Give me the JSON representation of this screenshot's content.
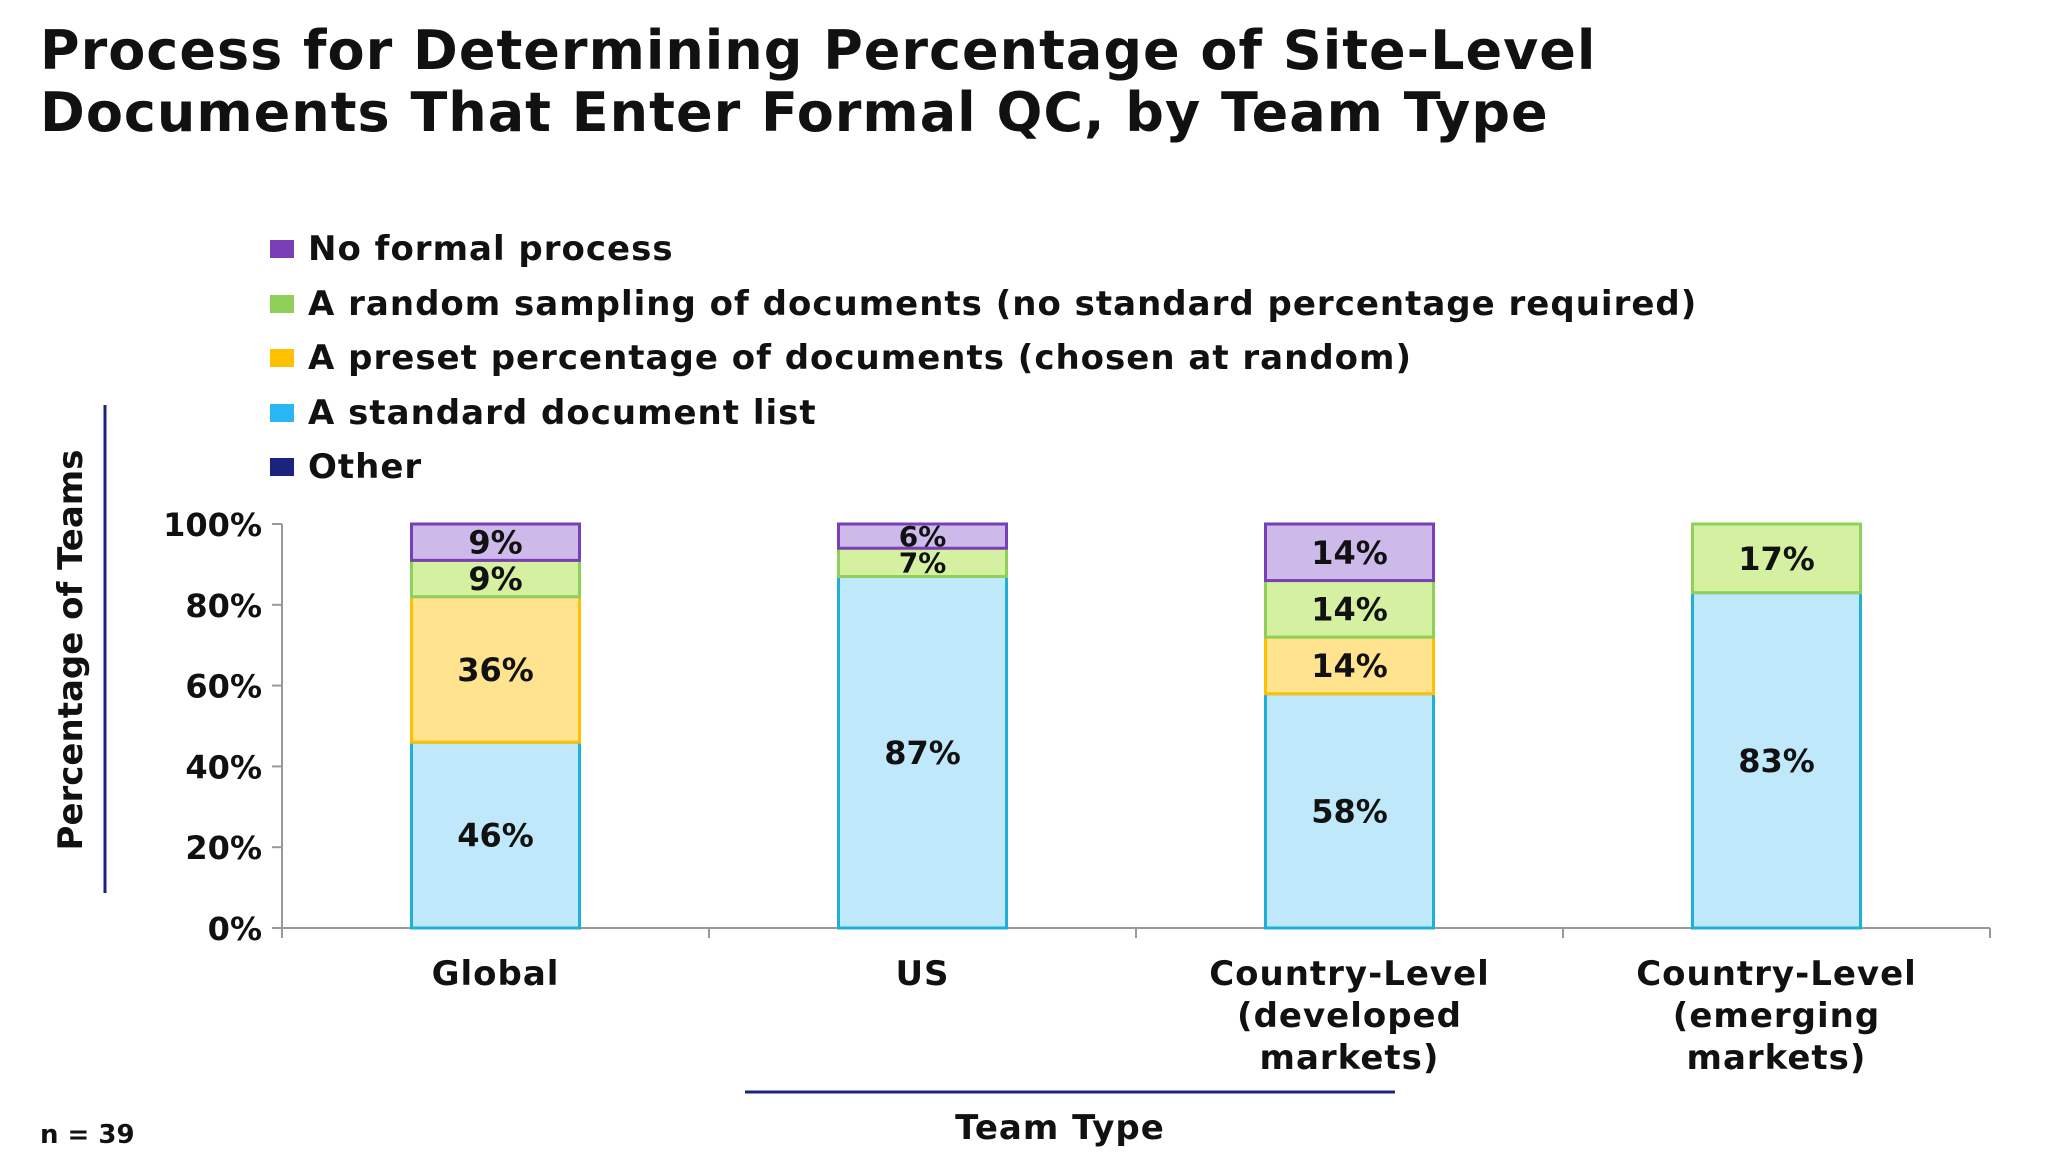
{
  "title_line1": "Process for Determining Percentage of Site-Level",
  "title_line2": "Documents That Enter Formal QC, by Team Type",
  "n_label": "n = 39",
  "chart_data": {
    "type": "bar",
    "stacked": true,
    "title": "Process for Determining Percentage of Site-Level Documents That Enter Formal QC, by Team Type",
    "xlabel": "Team Type",
    "ylabel": "Percentage of Teams",
    "ylim": [
      0,
      100
    ],
    "y_ticks": [
      "0%",
      "20%",
      "40%",
      "60%",
      "80%",
      "100%"
    ],
    "categories": [
      [
        "Global"
      ],
      [
        "US"
      ],
      [
        "Country-Level",
        "(developed",
        "markets)"
      ],
      [
        "Country-Level",
        "(emerging",
        "markets)"
      ]
    ],
    "legend_position": "top-left",
    "series": [
      {
        "name": "No formal process",
        "values": [
          9,
          6,
          14,
          0
        ],
        "labels": [
          "9%",
          "6%",
          "14%",
          ""
        ],
        "fill": "#cdb9ea",
        "swatch": "#7b3fb5",
        "stroke": "#7b3fb5"
      },
      {
        "name": "A random sampling of documents (no standard percentage required)",
        "values": [
          9,
          7,
          14,
          17
        ],
        "labels": [
          "9%",
          "7%",
          "14%",
          "17%"
        ],
        "fill": "#d4f0a0",
        "swatch": "#8ed05a",
        "stroke": "#8ed05a"
      },
      {
        "name": "A preset percentage of documents (chosen at random)",
        "values": [
          36,
          0,
          14,
          0
        ],
        "labels": [
          "36%",
          "",
          "14%",
          ""
        ],
        "fill": "#ffe38f",
        "swatch": "#ffc000",
        "stroke": "#ffc000"
      },
      {
        "name": "A standard document list",
        "values": [
          46,
          87,
          58,
          83
        ],
        "labels": [
          "46%",
          "87%",
          "58%",
          "83%"
        ],
        "fill": "#bfe9fb",
        "swatch": "#29b6f6",
        "stroke": "#1fb0d8"
      },
      {
        "name": "Other",
        "values": [
          0,
          0,
          0,
          0
        ],
        "labels": [
          "",
          "",
          "",
          ""
        ],
        "fill": "#1a237e",
        "swatch": "#1a237e",
        "stroke": "#1a237e"
      }
    ],
    "stack_order_bottom_to_top": [
      3,
      2,
      1,
      0
    ]
  }
}
